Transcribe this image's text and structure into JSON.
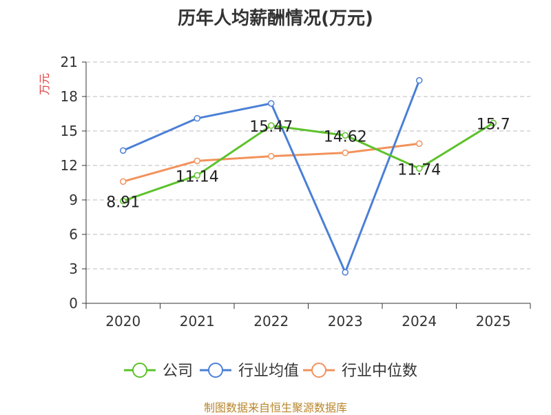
{
  "title": "历年人均薪酬情况(万元)",
  "source": "制图数据来自恒生聚源数据库",
  "chart_data": {
    "type": "line",
    "title": "历年人均薪酬情况(万元)",
    "ylabel": "万元",
    "xlabel": "",
    "categories": [
      "2020",
      "2021",
      "2022",
      "2023",
      "2024",
      "2025"
    ],
    "ylim": [
      0,
      21
    ],
    "yticks": [
      0,
      3,
      6,
      9,
      12,
      15,
      18,
      21
    ],
    "grid": true,
    "legend_position": "bottom",
    "series": [
      {
        "name": "公司",
        "color": "#5cc22b",
        "values": [
          8.91,
          11.14,
          15.47,
          14.62,
          11.74,
          15.7
        ],
        "labels": [
          "8.91",
          "11.14",
          "15.47",
          "14.62",
          "11.74",
          "15.7"
        ]
      },
      {
        "name": "行业均值",
        "color": "#4a7fd6",
        "values": [
          13.3,
          16.1,
          17.4,
          2.7,
          19.4,
          null
        ],
        "labels": []
      },
      {
        "name": "行业中位数",
        "color": "#f2925b",
        "values": [
          10.6,
          12.4,
          12.8,
          13.1,
          13.9,
          null
        ],
        "labels": []
      }
    ]
  }
}
